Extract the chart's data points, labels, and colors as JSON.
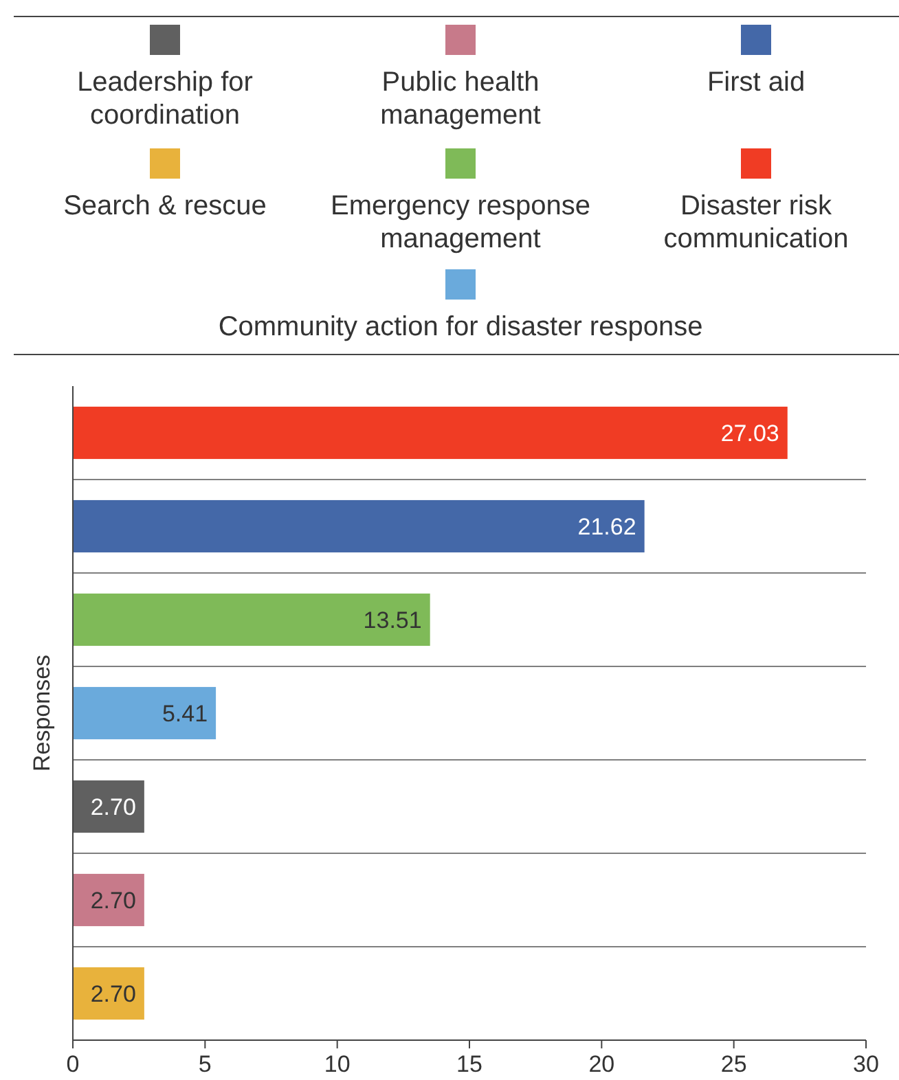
{
  "chart_data": {
    "type": "bar",
    "orientation": "horizontal",
    "stacked": true,
    "ylabel": "Responses",
    "categories": [
      null,
      null,
      null,
      null,
      null,
      null,
      null
    ],
    "series": [
      {
        "name": "Leadership for coordination",
        "color": "#606060",
        "values": [
          null,
          null,
          null,
          null,
          2.7,
          null,
          null
        ],
        "value_labels": [
          null,
          null,
          null,
          null,
          "2.70",
          null,
          null
        ]
      },
      {
        "name": "Public health management",
        "color": "#c77a8a",
        "values": [
          null,
          null,
          null,
          null,
          null,
          2.7,
          null
        ],
        "value_labels": [
          null,
          null,
          null,
          null,
          null,
          "2.70",
          null
        ]
      },
      {
        "name": "First aid",
        "color": "#4468a8",
        "values": [
          null,
          21.62,
          null,
          null,
          null,
          null,
          null
        ],
        "value_labels": [
          null,
          "21.62",
          null,
          null,
          null,
          null,
          null
        ]
      },
      {
        "name": "Search & rescue",
        "color": "#e8b23c",
        "values": [
          null,
          null,
          null,
          null,
          null,
          null,
          2.7
        ],
        "value_labels": [
          null,
          null,
          null,
          null,
          null,
          null,
          "2.70"
        ]
      },
      {
        "name": "Emergency response management",
        "color": "#7fba58",
        "values": [
          null,
          null,
          13.51,
          null,
          null,
          null,
          null
        ],
        "value_labels": [
          null,
          null,
          "13.51",
          null,
          null,
          null,
          null
        ]
      },
      {
        "name": "Disaster risk communication",
        "color": "#f03c24",
        "values": [
          27.03,
          null,
          null,
          null,
          null,
          null,
          null
        ],
        "value_labels": [
          "27.03",
          null,
          null,
          null,
          null,
          null,
          null
        ]
      },
      {
        "name": "Community action for disaster response",
        "color": "#6aaadc",
        "values": [
          null,
          null,
          null,
          5.41,
          null,
          null,
          null
        ],
        "value_labels": [
          null,
          null,
          null,
          "5.41",
          null,
          null,
          null
        ]
      }
    ],
    "xlim": [
      0,
      30
    ],
    "xticks": [
      0,
      5,
      10,
      15,
      20,
      25,
      30
    ],
    "grid": "y",
    "legend": "top"
  }
}
